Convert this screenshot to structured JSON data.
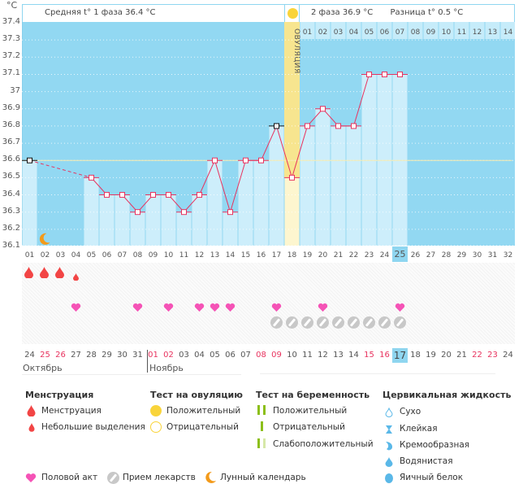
{
  "chart_data": {
    "type": "line",
    "unit_label": "°C",
    "ylim": [
      36.1,
      37.4
    ],
    "y_ticks": [
      "37.4",
      "37.3",
      "37.2",
      "37.1",
      "37",
      "36.9",
      "36.8",
      "36.7",
      "36.6",
      "36.5",
      "36.4",
      "36.3",
      "36.2",
      "36.1"
    ],
    "cycle_days": [
      "01",
      "02",
      "03",
      "04",
      "05",
      "06",
      "07",
      "08",
      "09",
      "10",
      "11",
      "12",
      "13",
      "14",
      "15",
      "16",
      "17",
      "18",
      "19",
      "20",
      "21",
      "22",
      "23",
      "24",
      "25",
      "26",
      "27",
      "28",
      "29",
      "30",
      "31",
      "32"
    ],
    "phase2_days": [
      "01",
      "02",
      "03",
      "04",
      "05",
      "06",
      "07",
      "08",
      "09",
      "10",
      "11",
      "12",
      "13",
      "14"
    ],
    "ovulation_day": 18,
    "ovulation_label": "ОВУЛЯЦИЯ",
    "coverline": 36.6,
    "current_day": 25,
    "series": [
      {
        "name": "temperature",
        "x": [
          1,
          5,
          6,
          7,
          8,
          9,
          10,
          11,
          12,
          13,
          14,
          15,
          16,
          17,
          18,
          19,
          20,
          21,
          22,
          23,
          24,
          25
        ],
        "values": [
          36.6,
          36.5,
          36.4,
          36.4,
          36.3,
          36.4,
          36.4,
          36.3,
          36.4,
          36.6,
          36.3,
          36.6,
          36.6,
          36.8,
          36.5,
          36.8,
          36.9,
          36.8,
          36.8,
          37.1,
          37.1,
          37.1
        ]
      }
    ],
    "excluded_points": [
      1,
      17
    ],
    "grid": true
  },
  "header": {
    "phase1": "Средняя t° 1 фаза 36.4 °C",
    "phase2": "2 фаза 36.9 °C",
    "diff": "Разница t° 0.5 °C"
  },
  "events": {
    "menstruation_days": [
      1,
      2,
      3
    ],
    "spotting_days": [
      4
    ],
    "intercourse_days": [
      4,
      8,
      10,
      12,
      13,
      14,
      17,
      20,
      25
    ],
    "medication_days": [
      17,
      18,
      19,
      20,
      21,
      22,
      23,
      24,
      25
    ],
    "moon_day": 2
  },
  "calendar": {
    "dates": [
      "24",
      "25",
      "26",
      "27",
      "28",
      "29",
      "30",
      "31",
      "01",
      "02",
      "03",
      "04",
      "05",
      "06",
      "07",
      "08",
      "09",
      "10",
      "11",
      "12",
      "13",
      "14",
      "15",
      "16",
      "17",
      "18",
      "19",
      "20",
      "21",
      "22",
      "23",
      "24"
    ],
    "red_indices": [
      1,
      2,
      8,
      9,
      15,
      16,
      22,
      23,
      29,
      30
    ],
    "today_index": 24,
    "months": [
      "Октябрь",
      "Ноябрь"
    ]
  },
  "legend": {
    "menstruation": {
      "title": "Менструация",
      "items": [
        "Менструация",
        "Небольшие выделения"
      ]
    },
    "ovulation_test": {
      "title": "Тест на овуляцию",
      "items": [
        "Положительный",
        "Отрицательный"
      ]
    },
    "pregnancy_test": {
      "title": "Тест на беременность",
      "items": [
        "Положительный",
        "Отрицательный",
        "Слабоположительный"
      ]
    },
    "cervical": {
      "title": "Цервикальная жидкость",
      "items": [
        "Сухо",
        "Клейкая",
        "Кремообразная",
        "Водянистая",
        "Яичный белок"
      ]
    },
    "other": [
      "Половой акт",
      "Прием лекарств",
      "Лунный календарь"
    ]
  },
  "colors": {
    "plot_bg": "#92d8f2",
    "bar": "#cdeefb",
    "line": "#e8335f",
    "ovulation": "#f7e58f",
    "drop": "#f24545",
    "heart": "#f553b6",
    "pill": "#c8c8c8",
    "moon": "#f39a1a",
    "green": "#8cbf1a"
  }
}
